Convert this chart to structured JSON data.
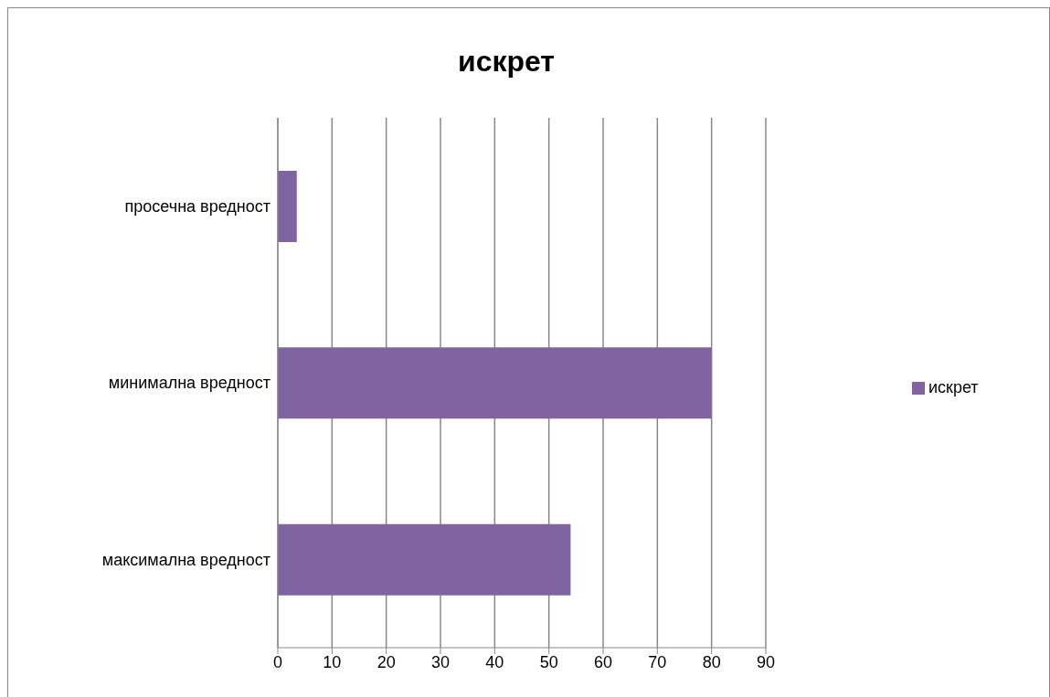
{
  "chart_data": {
    "type": "bar",
    "orientation": "horizontal",
    "title": "искрет",
    "categories": [
      "просечна вредност",
      "минимална вредност",
      "максимална вредност"
    ],
    "series": [
      {
        "name": "искрет",
        "color": "#8064a2",
        "values": [
          3.5,
          80,
          54
        ]
      }
    ],
    "xlim": [
      0,
      90
    ],
    "xticks": [
      0,
      10,
      20,
      30,
      40,
      50,
      60,
      70,
      80,
      90
    ],
    "grid": "x",
    "legend": "right"
  }
}
